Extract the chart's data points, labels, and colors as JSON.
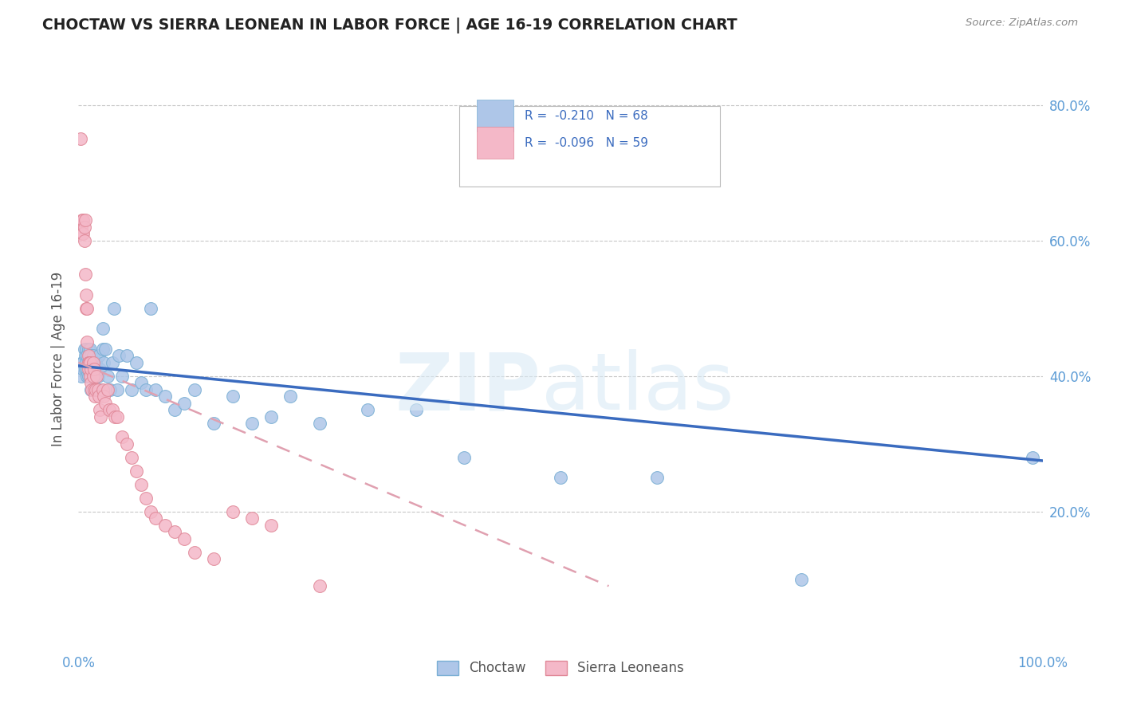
{
  "title": "CHOCTAW VS SIERRA LEONEAN IN LABOR FORCE | AGE 16-19 CORRELATION CHART",
  "source": "Source: ZipAtlas.com",
  "ylabel": "In Labor Force | Age 16-19",
  "xlim": [
    0.0,
    1.0
  ],
  "ylim": [
    0.0,
    0.85
  ],
  "choctaw_R": -0.21,
  "choctaw_N": 68,
  "sierraleonean_R": -0.096,
  "sierraleonean_N": 59,
  "choctaw_color": "#aec6e8",
  "choctaw_edge": "#7aafd4",
  "sierraleonean_color": "#f4b8c8",
  "sierraleonean_edge": "#e08898",
  "choctaw_line_color": "#3a6bbf",
  "sierraleonean_line_color": "#e0a0b0",
  "legend_label_choctaw": "Choctaw",
  "legend_label_sierra": "Sierra Leoneans",
  "choctaw_x": [
    0.003,
    0.004,
    0.005,
    0.005,
    0.006,
    0.007,
    0.007,
    0.008,
    0.008,
    0.009,
    0.009,
    0.009,
    0.01,
    0.01,
    0.01,
    0.011,
    0.012,
    0.012,
    0.013,
    0.013,
    0.013,
    0.014,
    0.015,
    0.015,
    0.016,
    0.017,
    0.018,
    0.018,
    0.019,
    0.02,
    0.021,
    0.022,
    0.023,
    0.025,
    0.025,
    0.026,
    0.028,
    0.03,
    0.033,
    0.035,
    0.037,
    0.04,
    0.042,
    0.045,
    0.05,
    0.055,
    0.06,
    0.065,
    0.07,
    0.075,
    0.08,
    0.09,
    0.1,
    0.11,
    0.12,
    0.14,
    0.16,
    0.18,
    0.2,
    0.22,
    0.25,
    0.3,
    0.35,
    0.4,
    0.5,
    0.6,
    0.75,
    0.99
  ],
  "choctaw_y": [
    0.4,
    0.42,
    0.42,
    0.41,
    0.44,
    0.43,
    0.41,
    0.44,
    0.42,
    0.43,
    0.41,
    0.4,
    0.44,
    0.42,
    0.4,
    0.43,
    0.44,
    0.4,
    0.43,
    0.41,
    0.38,
    0.42,
    0.43,
    0.4,
    0.42,
    0.41,
    0.42,
    0.4,
    0.41,
    0.4,
    0.43,
    0.41,
    0.38,
    0.47,
    0.44,
    0.42,
    0.44,
    0.4,
    0.38,
    0.42,
    0.5,
    0.38,
    0.43,
    0.4,
    0.43,
    0.38,
    0.42,
    0.39,
    0.38,
    0.5,
    0.38,
    0.37,
    0.35,
    0.36,
    0.38,
    0.33,
    0.37,
    0.33,
    0.34,
    0.37,
    0.33,
    0.35,
    0.35,
    0.28,
    0.25,
    0.25,
    0.1,
    0.28
  ],
  "sierra_x": [
    0.002,
    0.003,
    0.004,
    0.004,
    0.005,
    0.005,
    0.006,
    0.006,
    0.007,
    0.007,
    0.008,
    0.008,
    0.009,
    0.009,
    0.01,
    0.01,
    0.01,
    0.011,
    0.012,
    0.012,
    0.013,
    0.013,
    0.014,
    0.015,
    0.015,
    0.016,
    0.016,
    0.017,
    0.018,
    0.019,
    0.02,
    0.021,
    0.022,
    0.023,
    0.025,
    0.026,
    0.028,
    0.03,
    0.032,
    0.035,
    0.038,
    0.04,
    0.045,
    0.05,
    0.055,
    0.06,
    0.065,
    0.07,
    0.075,
    0.08,
    0.09,
    0.1,
    0.11,
    0.12,
    0.14,
    0.16,
    0.18,
    0.2,
    0.25
  ],
  "sierra_y": [
    0.75,
    0.62,
    0.63,
    0.61,
    0.63,
    0.61,
    0.62,
    0.6,
    0.63,
    0.55,
    0.52,
    0.5,
    0.5,
    0.45,
    0.43,
    0.42,
    0.41,
    0.42,
    0.4,
    0.42,
    0.41,
    0.39,
    0.38,
    0.42,
    0.4,
    0.41,
    0.38,
    0.37,
    0.38,
    0.4,
    0.38,
    0.37,
    0.35,
    0.34,
    0.38,
    0.37,
    0.36,
    0.38,
    0.35,
    0.35,
    0.34,
    0.34,
    0.31,
    0.3,
    0.28,
    0.26,
    0.24,
    0.22,
    0.2,
    0.19,
    0.18,
    0.17,
    0.16,
    0.14,
    0.13,
    0.2,
    0.19,
    0.18,
    0.09
  ],
  "choctaw_line_x0": 0.0,
  "choctaw_line_y0": 0.415,
  "choctaw_line_x1": 1.0,
  "choctaw_line_y1": 0.275,
  "sierra_line_x0": 0.0,
  "sierra_line_y0": 0.42,
  "sierra_line_x1": 0.55,
  "sierra_line_y1": 0.09
}
